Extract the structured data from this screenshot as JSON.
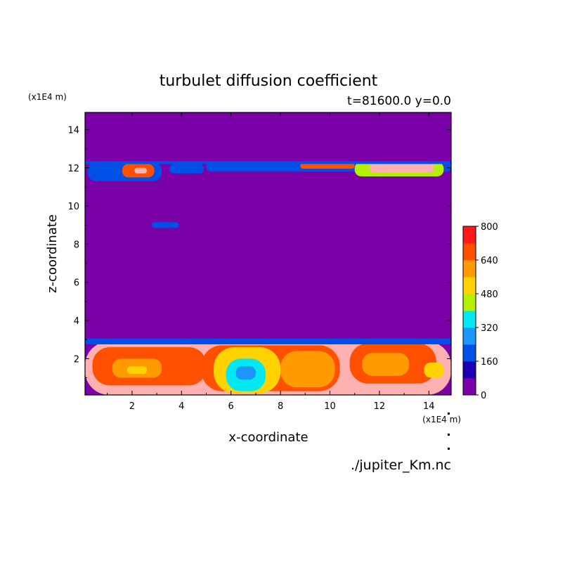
{
  "chart_data": {
    "type": "heatmap",
    "title": "turbulet diffusion coefficient",
    "subtitle": "t=81600.0 y=0.0",
    "xlabel": "x-coordinate",
    "ylabel": "z-coordinate",
    "x_unit": "(x1E4 m)",
    "y_unit": "(x1E4 m)",
    "source_file": "./jupiter_Km.nc",
    "xlim": [
      0.1,
      14.9
    ],
    "ylim": [
      0.1,
      14.9
    ],
    "x_ticks": [
      "2",
      "4",
      "6",
      "8",
      "10",
      "12",
      "14"
    ],
    "y_ticks": [
      "2",
      "4",
      "6",
      "8",
      "10",
      "12",
      "14"
    ],
    "colorbar": {
      "labels": [
        "0",
        "160",
        "320",
        "480",
        "640",
        "800"
      ],
      "levels": [
        0,
        80,
        160,
        240,
        320,
        400,
        480,
        560,
        640,
        720,
        800
      ],
      "colors": [
        "#7a00a8",
        "#1a00b0",
        "#0050e8",
        "#1e96ff",
        "#00e8f0",
        "#b4f000",
        "#ffd200",
        "#ff9a00",
        "#ff5000",
        "#ff1a1a",
        "#ffb0b0"
      ]
    },
    "background_level": 0,
    "regions": [
      {
        "x": [
          0.1,
          14.9
        ],
        "y": [
          0.1,
          2.9
        ],
        "level": 800
      },
      {
        "x": [
          0.4,
          5.0
        ],
        "y": [
          0.6,
          2.6
        ],
        "level": 640
      },
      {
        "x": [
          1.2,
          3.2
        ],
        "y": [
          1.0,
          2.0
        ],
        "level": 560
      },
      {
        "x": [
          1.8,
          2.6
        ],
        "y": [
          1.2,
          1.6
        ],
        "level": 480
      },
      {
        "x": [
          4.8,
          10.4
        ],
        "y": [
          0.3,
          2.7
        ],
        "level": 640
      },
      {
        "x": [
          5.3,
          8.0
        ],
        "y": [
          0.2,
          2.6
        ],
        "level": 480
      },
      {
        "x": [
          5.8,
          7.4
        ],
        "y": [
          0.3,
          2.0
        ],
        "level": 320
      },
      {
        "x": [
          6.2,
          7.0
        ],
        "y": [
          0.9,
          1.6
        ],
        "level": 240
      },
      {
        "x": [
          8.0,
          10.2
        ],
        "y": [
          0.5,
          2.4
        ],
        "level": 560
      },
      {
        "x": [
          10.8,
          14.3
        ],
        "y": [
          0.7,
          2.8
        ],
        "level": 640
      },
      {
        "x": [
          11.3,
          13.2
        ],
        "y": [
          1.1,
          2.3
        ],
        "level": 560
      },
      {
        "x": [
          13.8,
          14.6
        ],
        "y": [
          1.0,
          1.8
        ],
        "level": 480
      },
      {
        "x": [
          0.2,
          3.2
        ],
        "y": [
          11.3,
          12.3
        ],
        "level": 160
      },
      {
        "x": [
          1.6,
          2.9
        ],
        "y": [
          11.5,
          12.2
        ],
        "level": 640
      },
      {
        "x": [
          2.1,
          2.6
        ],
        "y": [
          11.7,
          12.0
        ],
        "level": 800
      },
      {
        "x": [
          3.5,
          4.9
        ],
        "y": [
          11.7,
          12.2
        ],
        "level": 160
      },
      {
        "x": [
          2.8,
          3.9
        ],
        "y": [
          8.85,
          9.15
        ],
        "level": 160
      },
      {
        "x": [
          5.0,
          14.9
        ],
        "y": [
          11.8,
          12.3
        ],
        "level": 160
      },
      {
        "x": [
          8.8,
          11.0
        ],
        "y": [
          11.95,
          12.25
        ],
        "level": 640
      },
      {
        "x": [
          11.0,
          14.6
        ],
        "y": [
          11.55,
          12.3
        ],
        "level": 400
      },
      {
        "x": [
          11.6,
          14.2
        ],
        "y": [
          11.75,
          12.25
        ],
        "level": 800
      },
      {
        "x": [
          0.1,
          14.9
        ],
        "y": [
          2.75,
          3.05
        ],
        "level": 160
      },
      {
        "x": [
          0.1,
          14.9
        ],
        "y": [
          12.2,
          12.35
        ],
        "level": 160
      }
    ]
  }
}
